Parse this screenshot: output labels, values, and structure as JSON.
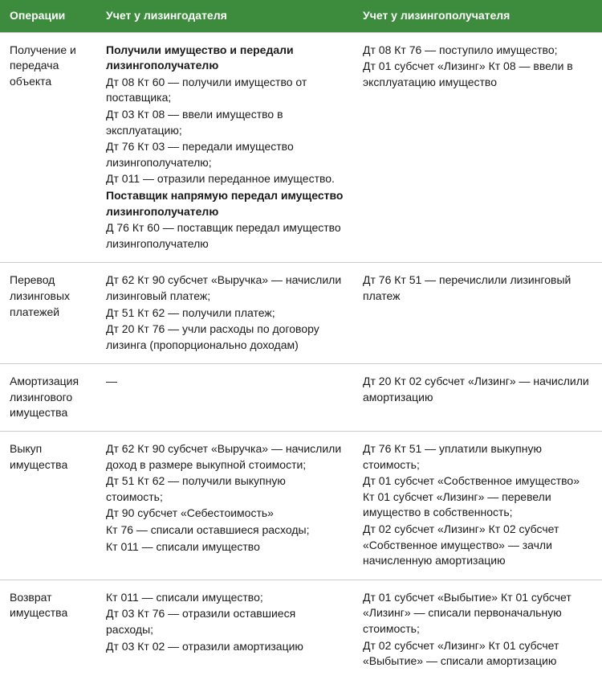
{
  "header": {
    "col1": "Операции",
    "col2": "Учет у лизингодателя",
    "col3": "Учет у лизингополучателя"
  },
  "rows": [
    {
      "op": "Получение и передача объекта",
      "lessor": [
        {
          "text": "Получили имущество и передали лизингополучателю",
          "bold": true
        },
        {
          "text": "Дт 08 Кт 60 — получили имущество от поставщика;"
        },
        {
          "text": "Дт 03 Кт 08 — ввели имущество в эксплуатацию;"
        },
        {
          "text": "Дт 76 Кт 03 — передали имущество лизингополучателю;"
        },
        {
          "text": "Дт 011 — отразили переданное имущество."
        },
        {
          "text": "Поставщик напрямую передал имущество лизингополучателю",
          "bold": true
        },
        {
          "text": "Д 76 Кт 60 — поставщик передал имущество лизингополучателю"
        }
      ],
      "lessee": [
        {
          "text": "Дт 08 Кт 76 — поступило имущество;"
        },
        {
          "text": "Дт 01 субсчет «Лизинг» Кт 08 — ввели в эксплуатацию имущество"
        }
      ]
    },
    {
      "op": "Перевод лизинговых платежей",
      "lessor": [
        {
          "text": "Дт 62 Кт 90 субсчет «Выручка» — начислили лизинговый платеж;"
        },
        {
          "text": "Дт 51 Кт 62 — получили платеж;"
        },
        {
          "text": "Дт 20 Кт 76 — учли расходы по договору лизинга (пропорционально доходам)"
        }
      ],
      "lessee": [
        {
          "text": "Дт 76 Кт 51 — перечислили лизинговый платеж"
        }
      ]
    },
    {
      "op": "Амортизация лизингового имущества",
      "lessor": [
        {
          "text": "—"
        }
      ],
      "lessee": [
        {
          "text": "Дт 20 Кт 02 субсчет «Лизинг» — начислили амортизацию"
        }
      ]
    },
    {
      "op": "Выкуп имущества",
      "lessor": [
        {
          "text": "Дт 62 Кт 90 субсчет «Выручка» — начислили доход в размере выкупной стоимости;"
        },
        {
          "text": "Дт 51 Кт 62 — получили выкупную стоимость;"
        },
        {
          "text": "Дт 90 субсчет «Себестоимость»"
        },
        {
          "text": "Кт 76 — списали оставшиеся расходы;"
        },
        {
          "text": "Кт 011 — списали имущество"
        }
      ],
      "lessee": [
        {
          "text": "Дт 76 Кт 51 — уплатили выкупную стоимость;"
        },
        {
          "text": "Дт 01 субсчет «Собственное имущество» Кт 01 субсчет «Лизинг» — перевели имущество в собственность;"
        },
        {
          "text": "Дт 02 субсчет «Лизинг» Кт 02 субсчет «Собственное имущество» — зачли начисленную амортизацию"
        }
      ]
    },
    {
      "op": "Возврат имущества",
      "lessor": [
        {
          "text": "Кт 011 — списали имущество;"
        },
        {
          "text": "Дт 03 Кт 76 — отразили оставшиеся расходы;"
        },
        {
          "text": "Дт 03 Кт 02 — отразили амортизацию"
        }
      ],
      "lessee": [
        {
          "text": "Дт 01 субсчет «Выбытие» Кт 01 субсчет «Лизинг» — списали первоначальную стоимость;"
        },
        {
          "text": "Дт 02 субсчет «Лизинг» Кт 01 субсчет «Выбытие» — списали амортизацию"
        }
      ]
    }
  ]
}
